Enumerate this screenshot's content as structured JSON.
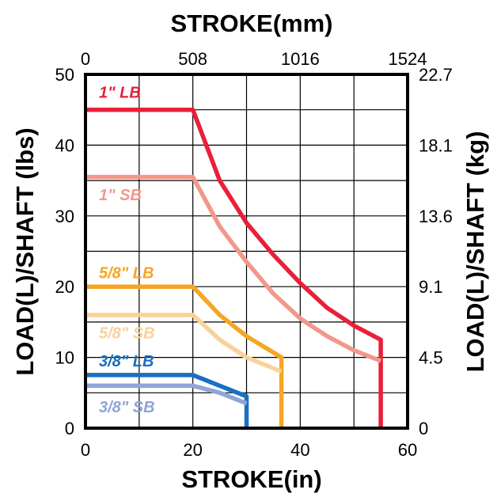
{
  "chart_data": {
    "type": "line",
    "title": "",
    "xlabel": "STROKE(in)",
    "x2label": "STROKE(mm)",
    "ylabel": "LOAD(L)/SHAFT (lbs)",
    "y2label": "LOAD(L)/SHAFT (kg)",
    "xlim": [
      0,
      60
    ],
    "ylim": [
      0,
      50
    ],
    "x_ticks": [
      0,
      20,
      40,
      60
    ],
    "x_tick_labels": [
      "0",
      "20",
      "40",
      "60"
    ],
    "x2_ticks": [
      0,
      20,
      40,
      60
    ],
    "x2_tick_labels": [
      "0",
      "508",
      "1016",
      "1524"
    ],
    "y_ticks": [
      0,
      10,
      20,
      30,
      40,
      50
    ],
    "y_tick_labels": [
      "0",
      "10",
      "20",
      "30",
      "40",
      "50"
    ],
    "y2_ticks": [
      0,
      10,
      20,
      30,
      40,
      50
    ],
    "y2_tick_labels": [
      "0",
      "4.5",
      "9.1",
      "13.6",
      "18.1",
      "22.7"
    ],
    "x_gridlines": [
      10,
      20,
      30,
      40,
      50
    ],
    "y_gridlines": [
      5,
      10,
      15,
      20,
      25,
      30,
      35,
      40,
      45
    ],
    "grid": true,
    "legend": "inline labels, left",
    "series": [
      {
        "name": "1\" LB",
        "color": "#e8203a",
        "points": [
          [
            0,
            45
          ],
          [
            20,
            45
          ],
          [
            25,
            35
          ],
          [
            30,
            29
          ],
          [
            35,
            24.5
          ],
          [
            40,
            20.5
          ],
          [
            45,
            17
          ],
          [
            50,
            14.5
          ],
          [
            55,
            12.5
          ],
          [
            55,
            0
          ]
        ],
        "label_pos": [
          2.5,
          47.5
        ]
      },
      {
        "name": "1\" SB",
        "color": "#f2988a",
        "points": [
          [
            0,
            35.5
          ],
          [
            20,
            35.5
          ],
          [
            25,
            28.5
          ],
          [
            30,
            23.5
          ],
          [
            35,
            19
          ],
          [
            40,
            15.5
          ],
          [
            45,
            13
          ],
          [
            50,
            11
          ],
          [
            55,
            9.5
          ]
        ],
        "label_pos": [
          2.5,
          33
        ]
      },
      {
        "name": "5/8\" LB",
        "color": "#f5a623",
        "points": [
          [
            0,
            20
          ],
          [
            20,
            20
          ],
          [
            25,
            16
          ],
          [
            30,
            13
          ],
          [
            36.5,
            10
          ],
          [
            36.5,
            0
          ]
        ],
        "label_pos": [
          2.5,
          22
        ]
      },
      {
        "name": "5/8\" SB",
        "color": "#f9d29a",
        "points": [
          [
            0,
            16
          ],
          [
            20,
            16
          ],
          [
            25,
            12.5
          ],
          [
            30,
            10
          ],
          [
            36.5,
            8
          ]
        ],
        "label_pos": [
          2.5,
          13.5
        ]
      },
      {
        "name": "3/8\" LB",
        "color": "#1a6fc0",
        "points": [
          [
            0,
            7.5
          ],
          [
            20,
            7.5
          ],
          [
            25,
            6
          ],
          [
            30,
            4.5
          ],
          [
            30,
            0
          ]
        ],
        "label_pos": [
          2.5,
          9.5
        ]
      },
      {
        "name": "3/8\" SB",
        "color": "#8fa5d6",
        "points": [
          [
            0,
            6
          ],
          [
            20,
            6
          ],
          [
            25,
            5
          ],
          [
            30,
            3.5
          ]
        ],
        "label_pos": [
          2.5,
          3
        ]
      }
    ]
  }
}
